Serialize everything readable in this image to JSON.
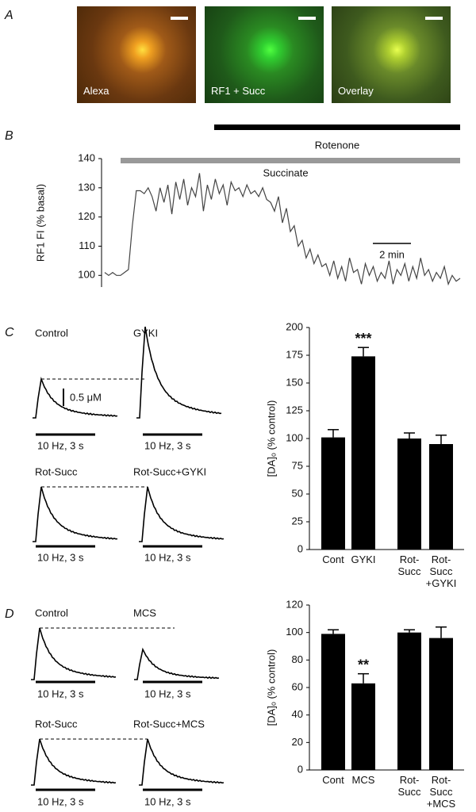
{
  "figure": {
    "panel_labels": [
      "A",
      "B",
      "C",
      "D"
    ],
    "images": [
      "Alexa",
      "RF1 + Succ",
      "Overlay"
    ],
    "traces_C": {
      "labels": [
        "Control",
        "GYKI",
        "Rot-Succ",
        "Rot-Succ+GYKI"
      ],
      "stimulus": "10 Hz, 3 s",
      "scale": "0.5 μM"
    },
    "traces_D": {
      "labels": [
        "Control",
        "MCS",
        "Rot-Succ",
        "Rot-Succ+MCS"
      ],
      "stimulus": "10 Hz, 3 s"
    }
  },
  "chart_data": [
    {
      "type": "line",
      "y_label": "RF1 FI (% basal)",
      "treatments": [
        "Rotenone",
        "Succinate"
      ],
      "scale_bar": "2 min",
      "ylim": [
        96,
        140
      ],
      "yticks": [
        100,
        110,
        120,
        130,
        140
      ],
      "color": "#444",
      "values": [
        101,
        100,
        101,
        100,
        100,
        101,
        102,
        117,
        129,
        129,
        128,
        130,
        127,
        122,
        130,
        125,
        131,
        121,
        132,
        126,
        133,
        124,
        130,
        127,
        135,
        122,
        131,
        126,
        133,
        128,
        131,
        124,
        132,
        129,
        130,
        127,
        131,
        128,
        129,
        127,
        130,
        126,
        125,
        122,
        127,
        118,
        123,
        115,
        117,
        110,
        112,
        106,
        109,
        104,
        107,
        103,
        104,
        100,
        105,
        99,
        103,
        98,
        106,
        101,
        102,
        97,
        104,
        100,
        103,
        98,
        101,
        99,
        105,
        97,
        102,
        100,
        104,
        98,
        103,
        99,
        106,
        100,
        102,
        98,
        101,
        99,
        103,
        97,
        100,
        98,
        99
      ]
    },
    {
      "type": "bar",
      "y_label": "[DA]ₒ (% control)",
      "categories": [
        "Cont",
        "GYKI",
        "Rot-\nSucc",
        "Rot-\nSucc\n+GYKI"
      ],
      "values": [
        101,
        174,
        100,
        95
      ],
      "errors": [
        7,
        8,
        5,
        8
      ],
      "significance": [
        null,
        "***",
        null,
        null
      ],
      "ylim": [
        0,
        200
      ],
      "yticks": [
        0,
        25,
        50,
        75,
        100,
        125,
        150,
        175,
        200
      ],
      "color": "#000"
    },
    {
      "type": "bar",
      "y_label": "[DA]ₒ (% control)",
      "categories": [
        "Cont",
        "MCS",
        "Rot-\nSucc",
        "Rot-\nSucc\n+MCS"
      ],
      "values": [
        99,
        63,
        100,
        96
      ],
      "errors": [
        3,
        7,
        2,
        8
      ],
      "significance": [
        null,
        "**",
        null,
        null
      ],
      "ylim": [
        0,
        120
      ],
      "yticks": [
        0,
        20,
        40,
        60,
        80,
        100,
        120
      ],
      "color": "#000"
    }
  ]
}
